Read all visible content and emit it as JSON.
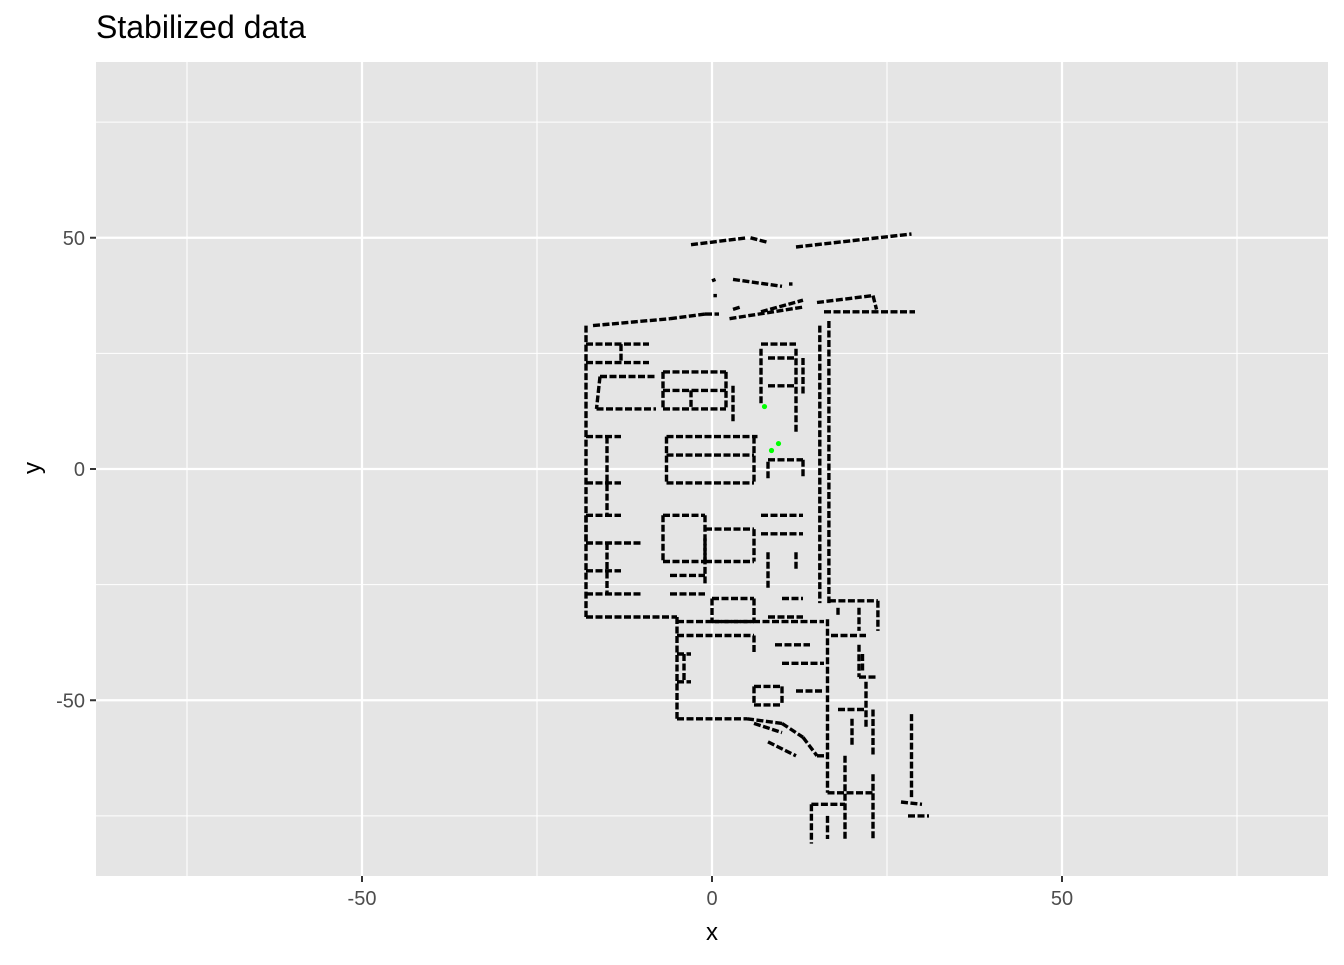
{
  "chart_data": {
    "type": "scatter",
    "title": "Stabilized data",
    "xlabel": "x",
    "ylabel": "y",
    "xlim": [
      -88,
      88
    ],
    "ylim": [
      -88,
      88
    ],
    "x_ticks": [
      -50,
      0,
      50
    ],
    "y_ticks": [
      -50,
      0,
      50
    ],
    "x_tick_labels": [
      "-50",
      "0",
      "50"
    ],
    "y_tick_labels": [
      "-50",
      "0",
      "50"
    ],
    "x_minor_ticks": [
      -75,
      -25,
      25,
      75
    ],
    "y_minor_ticks": [
      -75,
      -25,
      25,
      75
    ],
    "grid": true,
    "panel_background": "#e5e5e5",
    "colors": {
      "points": "#000000",
      "highlight": "#00ff00"
    },
    "series": [
      {
        "color": "#000000",
        "segments": [
          [
            [
              -3,
              48.5
            ],
            [
              5,
              50
            ]
          ],
          [
            [
              5.5,
              50
            ],
            [
              8,
              49
            ]
          ],
          [
            [
              12,
              48
            ],
            [
              28.5,
              50.8
            ]
          ],
          [
            [
              0,
              40.7
            ],
            [
              0.5,
              41
            ]
          ],
          [
            [
              3,
              41
            ],
            [
              10,
              39.5
            ]
          ],
          [
            [
              11,
              40
            ],
            [
              11.5,
              40
            ]
          ],
          [
            [
              0.2,
              37.5
            ],
            [
              0.7,
              37.5
            ]
          ],
          [
            [
              3,
              34.5
            ],
            [
              4,
              35
            ]
          ],
          [
            [
              7,
              34
            ],
            [
              13,
              36.5
            ]
          ],
          [
            [
              15,
              36
            ],
            [
              23,
              37.5
            ]
          ],
          [
            [
              23,
              37.5
            ],
            [
              23.5,
              34.5
            ]
          ],
          [
            [
              -17,
              31
            ],
            [
              -6,
              32.5
            ]
          ],
          [
            [
              -6,
              32.5
            ],
            [
              -1,
              33.5
            ]
          ],
          [
            [
              -1,
              33.5
            ],
            [
              1,
              33.5
            ]
          ],
          [
            [
              2.5,
              32.5
            ],
            [
              13,
              35
            ]
          ],
          [
            [
              16,
              34
            ],
            [
              29,
              34
            ]
          ],
          [
            [
              -18,
              31
            ],
            [
              -18,
              -32
            ]
          ],
          [
            [
              -18,
              -32
            ],
            [
              -5,
              -32
            ]
          ],
          [
            [
              -5,
              -32
            ],
            [
              -5,
              -54
            ]
          ],
          [
            [
              -5,
              -54
            ],
            [
              5,
              -54
            ]
          ],
          [
            [
              5,
              -54
            ],
            [
              10,
              -55
            ]
          ],
          [
            [
              10,
              -55
            ],
            [
              13,
              -58
            ]
          ],
          [
            [
              13,
              -58
            ],
            [
              15,
              -62
            ]
          ],
          [
            [
              15,
              -62
            ],
            [
              16,
              -62
            ]
          ],
          [
            [
              15.4,
              31
            ],
            [
              15.4,
              -29
            ]
          ],
          [
            [
              16.7,
              32
            ],
            [
              16.7,
              -29
            ]
          ],
          [
            [
              16.7,
              -28.5
            ],
            [
              23.7,
              -28.5
            ]
          ],
          [
            [
              23.7,
              -28.5
            ],
            [
              23.7,
              -35
            ]
          ],
          [
            [
              16.5,
              -32.5
            ],
            [
              16.5,
              -70
            ]
          ],
          [
            [
              16.5,
              -75
            ],
            [
              16.5,
              -80
            ]
          ],
          [
            [
              14.2,
              -72.5
            ],
            [
              14.2,
              -81
            ]
          ],
          [
            [
              14.2,
              -72.5
            ],
            [
              19,
              -72.5
            ]
          ],
          [
            [
              16.5,
              -70
            ],
            [
              23,
              -70
            ]
          ],
          [
            [
              23,
              -66
            ],
            [
              23,
              -80
            ]
          ],
          [
            [
              19,
              -62
            ],
            [
              19,
              -80
            ]
          ],
          [
            [
              -18,
              27
            ],
            [
              -9,
              27
            ]
          ],
          [
            [
              -18,
              23
            ],
            [
              -9,
              23
            ]
          ],
          [
            [
              -13,
              27
            ],
            [
              -13,
              23
            ]
          ],
          [
            [
              -16,
              20
            ],
            [
              -8,
              20
            ]
          ],
          [
            [
              -16,
              20
            ],
            [
              -16.5,
              13
            ]
          ],
          [
            [
              -16.5,
              13
            ],
            [
              -8,
              13
            ]
          ],
          [
            [
              -7,
              21
            ],
            [
              2,
              21
            ]
          ],
          [
            [
              -7,
              21
            ],
            [
              -7,
              13
            ]
          ],
          [
            [
              2,
              21
            ],
            [
              2,
              13
            ]
          ],
          [
            [
              -7,
              17
            ],
            [
              2,
              17
            ]
          ],
          [
            [
              -7,
              13
            ],
            [
              2,
              13
            ]
          ],
          [
            [
              -3,
              17
            ],
            [
              -3,
              13
            ]
          ],
          [
            [
              3,
              18
            ],
            [
              3,
              10
            ]
          ],
          [
            [
              -6.5,
              7
            ],
            [
              -6.5,
              -3
            ]
          ],
          [
            [
              -6.5,
              7
            ],
            [
              6.5,
              7
            ]
          ],
          [
            [
              -6.5,
              3
            ],
            [
              6,
              3
            ]
          ],
          [
            [
              -6.5,
              -3
            ],
            [
              6,
              -3
            ]
          ],
          [
            [
              6,
              7
            ],
            [
              6,
              -3
            ]
          ],
          [
            [
              -18,
              7
            ],
            [
              -13,
              7
            ]
          ],
          [
            [
              -18,
              -10
            ],
            [
              -13,
              -10
            ]
          ],
          [
            [
              -18,
              -3
            ],
            [
              -13,
              -3
            ]
          ],
          [
            [
              -18,
              -16
            ],
            [
              -10,
              -16
            ]
          ],
          [
            [
              -18,
              -22
            ],
            [
              -13,
              -22
            ]
          ],
          [
            [
              -18,
              -27
            ],
            [
              -10,
              -27
            ]
          ],
          [
            [
              -15,
              -16
            ],
            [
              -15,
              -27
            ]
          ],
          [
            [
              -15,
              7
            ],
            [
              -15,
              -10
            ]
          ],
          [
            [
              -18,
              -10
            ],
            [
              -18,
              -16
            ]
          ],
          [
            [
              -7,
              -10
            ],
            [
              -1,
              -10
            ]
          ],
          [
            [
              -7,
              -10
            ],
            [
              -7,
              -20
            ]
          ],
          [
            [
              -7,
              -20
            ],
            [
              -1,
              -20
            ]
          ],
          [
            [
              -1,
              -10
            ],
            [
              -1,
              -20
            ]
          ],
          [
            [
              -1,
              -13
            ],
            [
              6,
              -13
            ]
          ],
          [
            [
              -1,
              -20
            ],
            [
              6,
              -20
            ]
          ],
          [
            [
              6,
              -13
            ],
            [
              6,
              -20
            ]
          ],
          [
            [
              -1,
              -15
            ],
            [
              -1,
              -25
            ]
          ],
          [
            [
              -6,
              -23
            ],
            [
              -1,
              -23
            ]
          ],
          [
            [
              -6,
              -27
            ],
            [
              -1,
              -27
            ]
          ],
          [
            [
              0,
              -28
            ],
            [
              6,
              -28
            ]
          ],
          [
            [
              0,
              -28
            ],
            [
              0,
              -33
            ]
          ],
          [
            [
              0,
              -33
            ],
            [
              6,
              -33
            ]
          ],
          [
            [
              6,
              -28
            ],
            [
              6,
              -33
            ]
          ],
          [
            [
              -5,
              -33
            ],
            [
              16,
              -33
            ]
          ],
          [
            [
              -5,
              -36
            ],
            [
              6,
              -36
            ]
          ],
          [
            [
              6,
              -36
            ],
            [
              6,
              -40
            ]
          ],
          [
            [
              -5,
              -40
            ],
            [
              -3,
              -40
            ]
          ],
          [
            [
              -5,
              -46
            ],
            [
              -3,
              -46
            ]
          ],
          [
            [
              -4,
              -40
            ],
            [
              -4,
              -46
            ]
          ],
          [
            [
              6,
              -47
            ],
            [
              10,
              -47
            ]
          ],
          [
            [
              6,
              -51
            ],
            [
              10,
              -51
            ]
          ],
          [
            [
              6,
              -47
            ],
            [
              6,
              -51
            ]
          ],
          [
            [
              10,
              -47
            ],
            [
              10,
              -51
            ]
          ],
          [
            [
              6,
              -55
            ],
            [
              10,
              -57
            ]
          ],
          [
            [
              8,
              -59
            ],
            [
              12,
              -62
            ]
          ],
          [
            [
              8,
              18
            ],
            [
              12,
              18
            ]
          ],
          [
            [
              8,
              24
            ],
            [
              12,
              24
            ]
          ],
          [
            [
              12,
              26
            ],
            [
              12,
              8
            ]
          ],
          [
            [
              13,
              24
            ],
            [
              13,
              16
            ]
          ],
          [
            [
              7,
              27
            ],
            [
              12,
              27
            ]
          ],
          [
            [
              7,
              26
            ],
            [
              7,
              14
            ]
          ],
          [
            [
              7,
              -10
            ],
            [
              13,
              -10
            ]
          ],
          [
            [
              7,
              -14
            ],
            [
              13,
              -14
            ]
          ],
          [
            [
              8,
              -2
            ],
            [
              8,
              2
            ]
          ],
          [
            [
              8,
              2
            ],
            [
              13,
              2
            ]
          ],
          [
            [
              13,
              2
            ],
            [
              13,
              -2
            ]
          ],
          [
            [
              8,
              -18
            ],
            [
              8,
              -26
            ]
          ],
          [
            [
              12,
              -18
            ],
            [
              12,
              -22
            ]
          ],
          [
            [
              10,
              -28
            ],
            [
              13,
              -28
            ]
          ],
          [
            [
              8,
              -32
            ],
            [
              13,
              -32
            ]
          ],
          [
            [
              9,
              -38
            ],
            [
              14,
              -38
            ]
          ],
          [
            [
              10,
              -42
            ],
            [
              16,
              -42
            ]
          ],
          [
            [
              12,
              -48
            ],
            [
              16,
              -48
            ]
          ],
          [
            [
              17,
              -36
            ],
            [
              22,
              -36
            ]
          ],
          [
            [
              21,
              -38
            ],
            [
              21,
              -45
            ]
          ],
          [
            [
              21,
              -45
            ],
            [
              23.5,
              -45
            ]
          ],
          [
            [
              18,
              -52
            ],
            [
              22,
              -52
            ]
          ],
          [
            [
              20,
              -54
            ],
            [
              20,
              -60
            ]
          ],
          [
            [
              22,
              -46
            ],
            [
              22,
              -56
            ]
          ],
          [
            [
              23,
              -52
            ],
            [
              23,
              -62
            ]
          ],
          [
            [
              28.5,
              -53
            ],
            [
              28.5,
              -71
            ]
          ],
          [
            [
              27,
              -72
            ],
            [
              30,
              -72.5
            ]
          ],
          [
            [
              28,
              -75
            ],
            [
              31,
              -75
            ]
          ],
          [
            [
              21,
              -30
            ],
            [
              21,
              -35
            ]
          ],
          [
            [
              18,
              -30
            ],
            [
              18,
              -32
            ]
          ],
          [
            [
              21.5,
              -40
            ],
            [
              21.5,
              -44
            ]
          ]
        ]
      },
      {
        "color": "#00ff00",
        "points": [
          [
            7.5,
            13.5
          ],
          [
            9.5,
            5.5
          ],
          [
            8.5,
            4
          ]
        ]
      }
    ]
  }
}
